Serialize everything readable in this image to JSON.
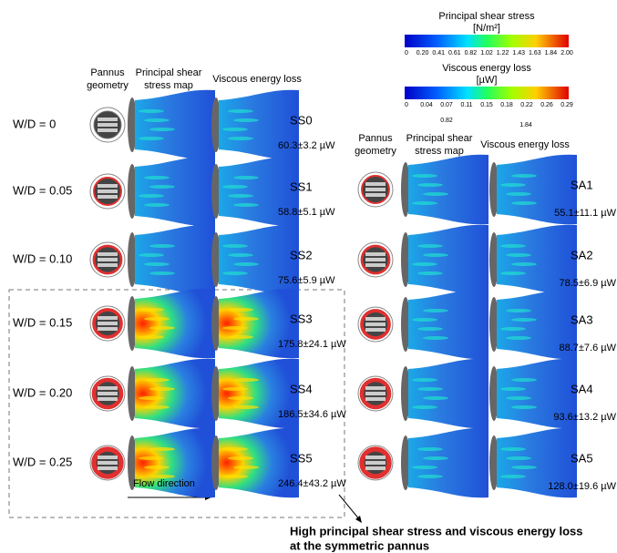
{
  "colorbars": [
    {
      "title": "Principal shear stress",
      "unit": "[N/m²]",
      "ticks": [
        "0",
        "0.20",
        "0.41",
        "0.61",
        "0.82",
        "1.02",
        "1.22",
        "1.43",
        "1.63",
        "1.84",
        "2.00"
      ]
    },
    {
      "title": "Viscous energy loss",
      "unit": "[µW]",
      "ticks": [
        "0",
        "0.04",
        "0.07",
        "0.11",
        "0.15",
        "0.18",
        "0.22",
        "0.26",
        "0.29"
      ]
    }
  ],
  "stray_labels": [
    "0.82",
    "1.84"
  ],
  "left_headers": [
    [
      "Pannus",
      "geometry"
    ],
    [
      "Principal shear",
      "stress map"
    ],
    [
      "Viscous energy loss"
    ]
  ],
  "right_headers": [
    [
      "Pannus",
      "geometry"
    ],
    [
      "Principal shear",
      "stress map"
    ],
    [
      "Viscous energy loss"
    ]
  ],
  "left_rows": [
    {
      "ratio": "W/D = 0",
      "panel": "SS0",
      "value": "60.3±3.2 µW"
    },
    {
      "ratio": "W/D = 0.05",
      "panel": "SS1",
      "value": "58.8±5.1 µW"
    },
    {
      "ratio": "W/D = 0.10",
      "panel": "SS2",
      "value": "75.6±5.9 µW"
    },
    {
      "ratio": "W/D = 0.15",
      "panel": "SS3",
      "value": "175.8±24.1 µW"
    },
    {
      "ratio": "W/D = 0.20",
      "panel": "SS4",
      "value": "186.5±34.6 µW"
    },
    {
      "ratio": "W/D = 0.25",
      "panel": "SS5",
      "value": "246.4±43.2 µW"
    }
  ],
  "right_rows": [
    {
      "panel": "SA1",
      "value": "55.1±11.1 µW"
    },
    {
      "panel": "SA2",
      "value": "78.5±6.9 µW"
    },
    {
      "panel": "SA3",
      "value": "88.7±7.6 µW"
    },
    {
      "panel": "SA4",
      "value": "93.6±13.2 µW"
    },
    {
      "panel": "SA5",
      "value": "128.0±19.6 µW"
    }
  ],
  "flow_direction": "Flow direction",
  "caption": [
    "High principal shear stress and viscous energy loss",
    "at the symmetric pannus"
  ]
}
